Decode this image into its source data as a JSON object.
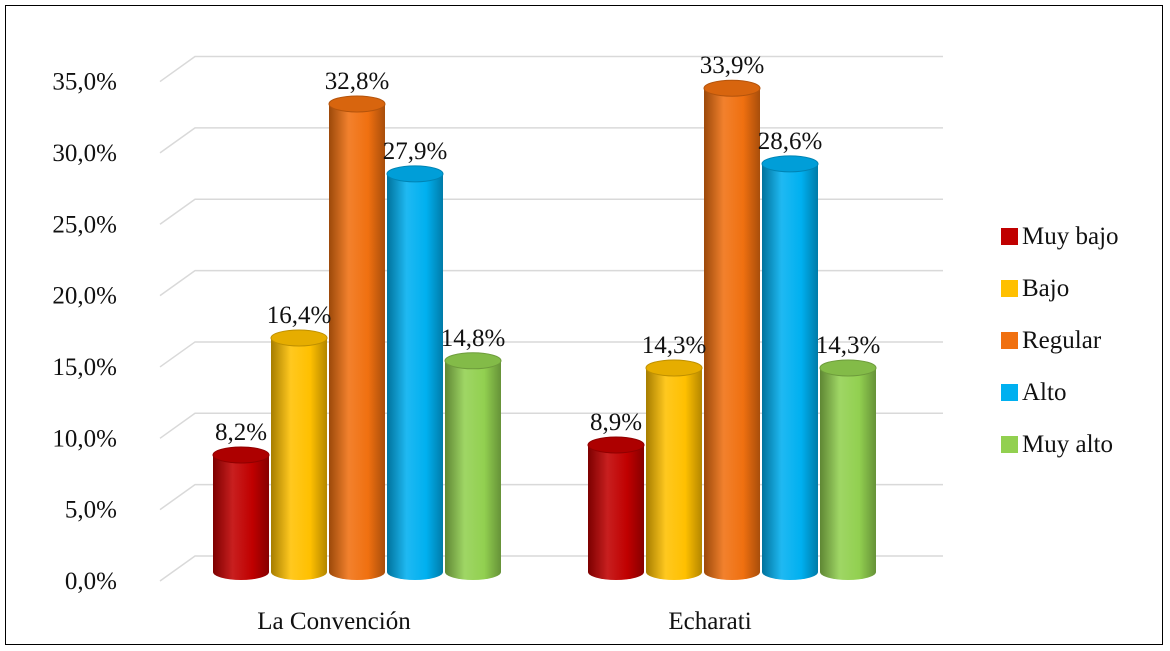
{
  "chart_data": {
    "type": "bar",
    "style": "3d-cylinder",
    "categories": [
      "La Convención",
      "Echarati"
    ],
    "series": [
      {
        "name": "Muy bajo",
        "color": "#c00000",
        "values": [
          8.2,
          8.9
        ]
      },
      {
        "name": "Bajo",
        "color": "#ffc000",
        "values": [
          16.4,
          14.3
        ]
      },
      {
        "name": "Regular",
        "color": "#f07010",
        "values": [
          32.8,
          33.9
        ]
      },
      {
        "name": "Alto",
        "color": "#00b0f0",
        "values": [
          27.9,
          28.6
        ]
      },
      {
        "name": "Muy alto",
        "color": "#92d050",
        "values": [
          14.8,
          14.3
        ]
      }
    ],
    "data_labels": [
      [
        "8,2%",
        "8,9%"
      ],
      [
        "16,4%",
        "14,3%"
      ],
      [
        "32,8%",
        "33,9%"
      ],
      [
        "27,9%",
        "28,6%"
      ],
      [
        "14,8%",
        "14,3%"
      ]
    ],
    "yticks": [
      "0,0%",
      "5,0%",
      "10,0%",
      "15,0%",
      "20,0%",
      "25,0%",
      "30,0%",
      "35,0%"
    ],
    "ylim": [
      0,
      35
    ],
    "grid": true,
    "legend_position": "right",
    "title": "",
    "xlabel": "",
    "ylabel": ""
  }
}
